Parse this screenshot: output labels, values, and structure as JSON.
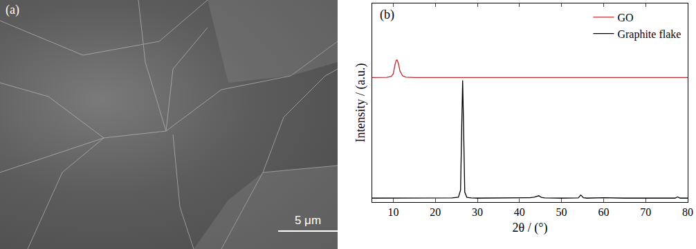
{
  "image_panel": {
    "label": "(a)",
    "scale_bar": "5 μm"
  },
  "chart_data": {
    "type": "line",
    "annotations": [
      "(b)"
    ],
    "x_label": "2θ / (°)",
    "y_label": "Intensity / (a.u.)",
    "xlim": [
      5,
      80
    ],
    "xticks": [
      10,
      20,
      30,
      40,
      50,
      60,
      70,
      80
    ],
    "ylim": [
      0,
      1
    ],
    "yticks": [],
    "tick_labels": "x",
    "legend": "top right",
    "series": [
      {
        "name": "GO",
        "color": "#c0282d",
        "x": [
          5,
          7,
          8.5,
          9.5,
          10,
          10.4,
          10.7,
          10.9,
          11.2,
          11.6,
          12.2,
          13,
          15,
          18,
          20,
          21.5,
          23,
          26,
          30,
          35,
          40,
          45,
          50,
          55,
          60,
          65,
          70,
          75,
          80
        ],
        "values": [
          0.627,
          0.627,
          0.628,
          0.632,
          0.645,
          0.69,
          0.714,
          0.716,
          0.7,
          0.66,
          0.636,
          0.629,
          0.627,
          0.627,
          0.627,
          0.629,
          0.627,
          0.627,
          0.627,
          0.627,
          0.627,
          0.627,
          0.627,
          0.627,
          0.627,
          0.627,
          0.627,
          0.627,
          0.627
        ]
      },
      {
        "name": "Graphite flake",
        "color": "#000000",
        "x": [
          5,
          10,
          15,
          20,
          24,
          25.5,
          26,
          26.3,
          26.5,
          26.7,
          27,
          27.5,
          28.5,
          30,
          35,
          40,
          42.5,
          43.5,
          44,
          44.6,
          45.2,
          46,
          50,
          54,
          54.6,
          55.2,
          56,
          60,
          65,
          70,
          77,
          77.6,
          78.2,
          80
        ],
        "values": [
          0.02,
          0.02,
          0.02,
          0.02,
          0.021,
          0.025,
          0.06,
          0.4,
          0.613,
          0.4,
          0.05,
          0.024,
          0.021,
          0.02,
          0.02,
          0.02,
          0.022,
          0.025,
          0.027,
          0.032,
          0.024,
          0.021,
          0.02,
          0.021,
          0.036,
          0.022,
          0.02,
          0.022,
          0.02,
          0.02,
          0.02,
          0.026,
          0.02,
          0.02
        ]
      }
    ]
  }
}
